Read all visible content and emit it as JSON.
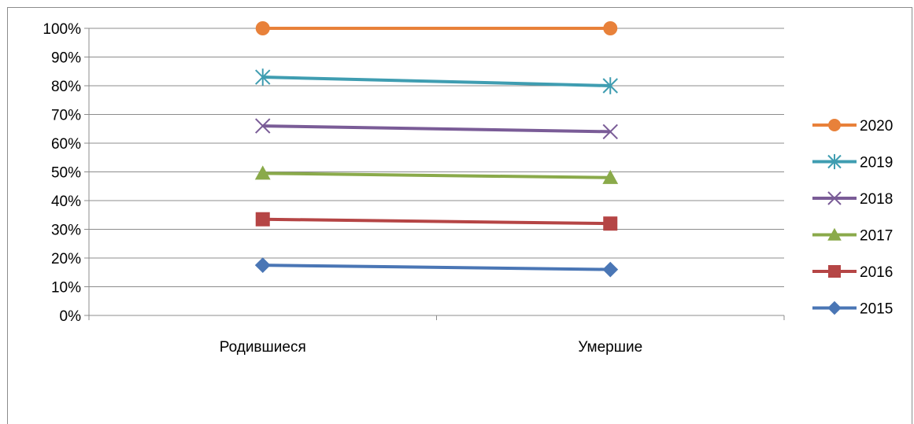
{
  "chart_data": {
    "type": "line",
    "title": "",
    "xlabel": "",
    "ylabel": "",
    "categories": [
      "Родившиеся",
      "Умершие"
    ],
    "ylim": [
      0,
      1
    ],
    "y_ticks": [
      "0%",
      "10%",
      "20%",
      "30%",
      "40%",
      "50%",
      "60%",
      "70%",
      "80%",
      "90%",
      "100%"
    ],
    "grid": true,
    "legend_position": "right",
    "series": [
      {
        "name": "2020",
        "values": [
          1.0,
          1.0
        ],
        "color": "#e8813a",
        "marker": "circle"
      },
      {
        "name": "2019",
        "values": [
          0.83,
          0.8
        ],
        "color": "#3f9db1",
        "marker": "star"
      },
      {
        "name": "2018",
        "values": [
          0.66,
          0.64
        ],
        "color": "#7a5c97",
        "marker": "x"
      },
      {
        "name": "2017",
        "values": [
          0.495,
          0.48
        ],
        "color": "#8aaa4a",
        "marker": "triangle"
      },
      {
        "name": "2016",
        "values": [
          0.335,
          0.32
        ],
        "color": "#b54545",
        "marker": "square"
      },
      {
        "name": "2015",
        "values": [
          0.175,
          0.16
        ],
        "color": "#4a76b5",
        "marker": "diamond"
      }
    ]
  }
}
